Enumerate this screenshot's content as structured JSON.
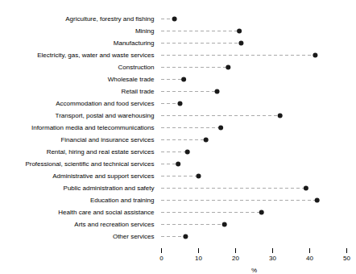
{
  "chart_data": {
    "type": "lollipop",
    "orientation": "horizontal",
    "categories": [
      "Agriculture, forestry and fishing",
      "Mining",
      "Manufacturing",
      "Electricity, gas, water and waste services",
      "Construction",
      "Wholesale trade",
      "Retail trade",
      "Accommodation and food services",
      "Transport, postal and warehousing",
      "Information media and telecommunications",
      "Financial and insurance services",
      "Rental, hiring and real estate services",
      "Professional, scientific and technical services",
      "Administrative and support services",
      "Public administration and safety",
      "Education and training",
      "Health care and social assistance",
      "Arts and recreation services",
      "Other services"
    ],
    "values": [
      3.5,
      21.0,
      21.5,
      41.5,
      18.0,
      6.0,
      15.0,
      5.0,
      32.0,
      16.0,
      12.0,
      7.0,
      4.5,
      10.0,
      39.0,
      42.0,
      27.0,
      17.0,
      6.5
    ],
    "xlim": [
      0,
      50
    ],
    "xticks": [
      0,
      10,
      20,
      30,
      40,
      50
    ],
    "xlabel": "%",
    "color": "#1a1a1a",
    "line_style": "dashed",
    "grid": false
  }
}
